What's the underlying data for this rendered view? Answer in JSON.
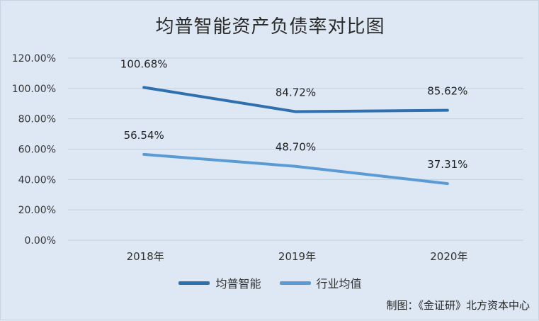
{
  "chart_data": {
    "type": "line",
    "title": "均普智能资产负债率对比图",
    "categories": [
      "2018年",
      "2019年",
      "2020年"
    ],
    "y_ticks": [
      "0.00%",
      "20.00%",
      "40.00%",
      "60.00%",
      "80.00%",
      "100.00%",
      "120.00%"
    ],
    "ylim": [
      0,
      120
    ],
    "grid": "horizontal",
    "legend_position": "bottom",
    "series": [
      {
        "name": "均普智能",
        "values": [
          100.68,
          84.72,
          85.62
        ],
        "labels": [
          "100.68%",
          "84.72%",
          "85.62%"
        ],
        "color": "#2e6fb0"
      },
      {
        "name": "行业均值",
        "values": [
          56.54,
          48.7,
          37.31
        ],
        "labels": [
          "56.54%",
          "48.70%",
          "37.31%"
        ],
        "color": "#5b9bd5"
      }
    ]
  },
  "source": "制图：《金证研》北方资本中心"
}
